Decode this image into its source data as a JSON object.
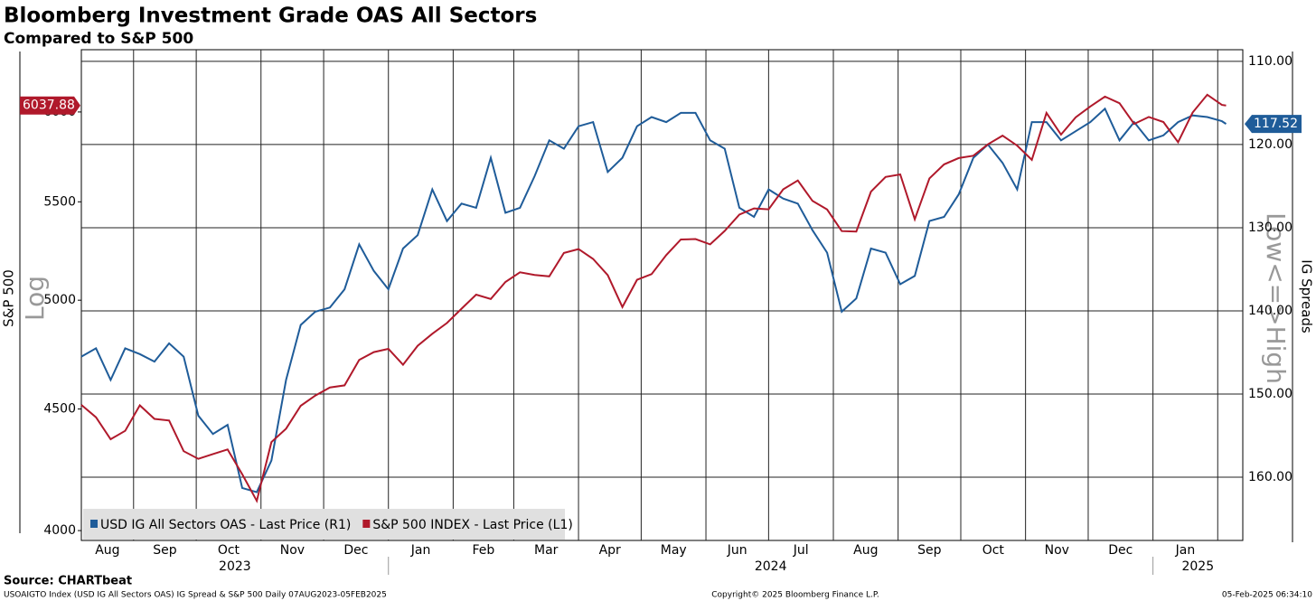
{
  "chart_data": {
    "type": "line",
    "title": "Bloomberg Investment Grade OAS All Sectors",
    "subtitle": "Compared to S&P 500",
    "ylabel": "S&P 500",
    "ylabel_note": "Log",
    "y2label": "IG Spreads",
    "y2label_note": "Low<=>High",
    "log_y": true,
    "grid": true,
    "legend": "lower left",
    "x": [
      "2023-08-07",
      "2023-08-14",
      "2023-08-21",
      "2023-08-28",
      "2023-09-04",
      "2023-09-11",
      "2023-09-18",
      "2023-09-25",
      "2023-10-02",
      "2023-10-09",
      "2023-10-16",
      "2023-10-23",
      "2023-10-30",
      "2023-11-06",
      "2023-11-13",
      "2023-11-20",
      "2023-11-27",
      "2023-12-04",
      "2023-12-11",
      "2023-12-18",
      "2023-12-25",
      "2024-01-01",
      "2024-01-08",
      "2024-01-15",
      "2024-01-22",
      "2024-01-29",
      "2024-02-05",
      "2024-02-12",
      "2024-02-19",
      "2024-02-26",
      "2024-03-04",
      "2024-03-11",
      "2024-03-18",
      "2024-03-25",
      "2024-04-01",
      "2024-04-08",
      "2024-04-15",
      "2024-04-22",
      "2024-04-29",
      "2024-05-06",
      "2024-05-13",
      "2024-05-20",
      "2024-05-27",
      "2024-06-03",
      "2024-06-10",
      "2024-06-17",
      "2024-06-24",
      "2024-07-01",
      "2024-07-08",
      "2024-07-15",
      "2024-07-22",
      "2024-07-29",
      "2024-08-05",
      "2024-08-12",
      "2024-08-19",
      "2024-08-26",
      "2024-09-02",
      "2024-09-09",
      "2024-09-16",
      "2024-09-23",
      "2024-09-30",
      "2024-10-07",
      "2024-10-14",
      "2024-10-21",
      "2024-10-28",
      "2024-11-04",
      "2024-11-11",
      "2024-11-18",
      "2024-11-25",
      "2024-12-02",
      "2024-12-09",
      "2024-12-16",
      "2024-12-23",
      "2024-12-30",
      "2025-01-06",
      "2025-01-13",
      "2025-01-20",
      "2025-01-27",
      "2025-02-03",
      "2025-02-05"
    ],
    "xlim": [
      "2023-08-07",
      "2025-02-13"
    ],
    "xticks": [
      {
        "value": "2023-08-01",
        "label": "Aug"
      },
      {
        "value": "2023-09-01",
        "label": "Sep"
      },
      {
        "value": "2023-10-01",
        "label": "Oct"
      },
      {
        "value": "2023-11-01",
        "label": "Nov"
      },
      {
        "value": "2023-12-01",
        "label": "Dec"
      },
      {
        "value": "2024-01-01",
        "label": "Jan"
      },
      {
        "value": "2024-02-01",
        "label": "Feb"
      },
      {
        "value": "2024-03-01",
        "label": "Mar"
      },
      {
        "value": "2024-04-01",
        "label": "Apr"
      },
      {
        "value": "2024-05-01",
        "label": "May"
      },
      {
        "value": "2024-06-01",
        "label": "Jun"
      },
      {
        "value": "2024-07-01",
        "label": "Jul"
      },
      {
        "value": "2024-08-01",
        "label": "Aug"
      },
      {
        "value": "2024-09-01",
        "label": "Sep"
      },
      {
        "value": "2024-10-01",
        "label": "Oct"
      },
      {
        "value": "2024-11-01",
        "label": "Nov"
      },
      {
        "value": "2024-12-01",
        "label": "Dec"
      },
      {
        "value": "2025-01-01",
        "label": "Jan"
      },
      "2025-02-01"
    ],
    "year_labels": [
      "2023",
      "2024",
      "2025"
    ],
    "ylim": [
      3962,
      6373
    ],
    "yticks": [
      4000,
      4500,
      5000,
      5500,
      6000
    ],
    "y2lim": [
      167.6,
      108.6
    ],
    "y2ticks": [
      {
        "value": 110,
        "label": "110.00"
      },
      {
        "value": 120,
        "label": "120.00"
      },
      {
        "value": 130,
        "label": "130.00"
      },
      {
        "value": 140,
        "label": "140.00"
      },
      {
        "value": 150,
        "label": "150.00"
      },
      {
        "value": 160,
        "label": "160.00"
      }
    ],
    "series": [
      {
        "name": "USD IG All Sectors OAS - Last Price (R1)",
        "color": "#1f5c99",
        "axis": "y2",
        "values": [
          145.5,
          144.5,
          148.3,
          144.5,
          145.2,
          146.1,
          143.9,
          145.5,
          152.6,
          154.8,
          153.7,
          161.3,
          161.8,
          158.0,
          148.3,
          141.7,
          140.1,
          139.6,
          137.4,
          132.0,
          135.2,
          137.4,
          132.5,
          130.9,
          125.4,
          129.2,
          127.1,
          127.6,
          121.6,
          128.2,
          127.6,
          123.8,
          119.5,
          120.5,
          117.8,
          117.3,
          123.3,
          121.6,
          117.8,
          116.7,
          117.3,
          116.2,
          116.2,
          119.5,
          120.5,
          127.6,
          128.7,
          125.4,
          126.5,
          127.1,
          130.3,
          133.0,
          140.1,
          138.5,
          132.5,
          133.0,
          136.8,
          135.8,
          129.2,
          128.7,
          126.0,
          121.6,
          120.0,
          122.2,
          125.4,
          117.3,
          117.3,
          119.5,
          118.4,
          117.3,
          115.7,
          119.5,
          117.3,
          119.5,
          118.9,
          117.3,
          116.5,
          116.7,
          117.2,
          117.52
        ]
      },
      {
        "name": "S&P 500 INDEX - Last Price (L1)",
        "color": "#b0192b",
        "axis": "y",
        "values": [
          4518,
          4464,
          4370,
          4406,
          4516,
          4457,
          4450,
          4320,
          4288,
          4308,
          4327,
          4224,
          4117,
          4358,
          4415,
          4514,
          4559,
          4595,
          4604,
          4719,
          4755,
          4770,
          4697,
          4784,
          4840,
          4891,
          4959,
          5027,
          5006,
          5089,
          5137,
          5124,
          5117,
          5234,
          5254,
          5204,
          5123,
          4967,
          5100,
          5128,
          5223,
          5303,
          5305,
          5278,
          5347,
          5432,
          5465,
          5460,
          5567,
          5615,
          5505,
          5459,
          5346,
          5344,
          5554,
          5634,
          5648,
          5408,
          5626,
          5703,
          5738,
          5751,
          5815,
          5864,
          5808,
          5728,
          5995,
          5870,
          5969,
          6032,
          6090,
          6051,
          5931,
          5971,
          5942,
          5827,
          5997,
          6101,
          6041,
          6037.88
        ]
      }
    ],
    "source": "Source: CHARTbeat",
    "footer_left": "USOAIGTO Index (USD IG All Sectors OAS) IG Spread & S&P 500  Daily 07AUG2023-05FEB2025",
    "footer_center": "Copyright© 2025 Bloomberg Finance L.P.",
    "footer_right": "05-Feb-2025 06:34:10"
  }
}
